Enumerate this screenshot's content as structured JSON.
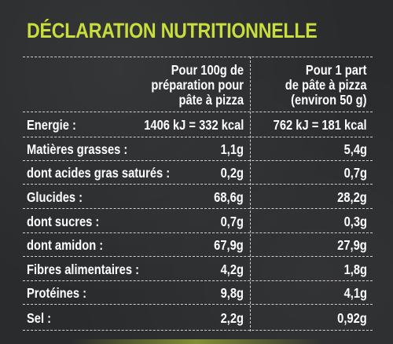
{
  "title": "DÉCLARATION NUTRITIONNELLE",
  "accent_color": "#c9de3a",
  "columns": {
    "col1": [
      "Pour 100g de",
      "préparation pour",
      "pâte à pizza"
    ],
    "col2": [
      "Pour 1 part",
      "de pâte à pizza",
      "(environ 50 g)"
    ]
  },
  "rows": [
    {
      "label": "Energie :",
      "per100": "1406 kJ = 332 kcal",
      "perPart": "762 kJ = 181 kcal"
    },
    {
      "label": "Matières grasses :",
      "per100": "1,1g",
      "perPart": "5,4g"
    },
    {
      "label": "dont acides gras saturés :",
      "per100": "0,2g",
      "perPart": "0,7g"
    },
    {
      "label": "Glucides :",
      "per100": "68,6g",
      "perPart": "28,2g"
    },
    {
      "label": "dont sucres :",
      "per100": "0,7g",
      "perPart": "0,3g"
    },
    {
      "label": "dont amidon :",
      "per100": "67,9g",
      "perPart": "27,9g"
    },
    {
      "label": "Fibres alimentaires :",
      "per100": "4,2g",
      "perPart": "1,8g"
    },
    {
      "label": "Protéines :",
      "per100": "9,8g",
      "perPart": "4,1g"
    },
    {
      "label": "Sel :",
      "per100": "2,2g",
      "perPart": "0,92g"
    }
  ]
}
